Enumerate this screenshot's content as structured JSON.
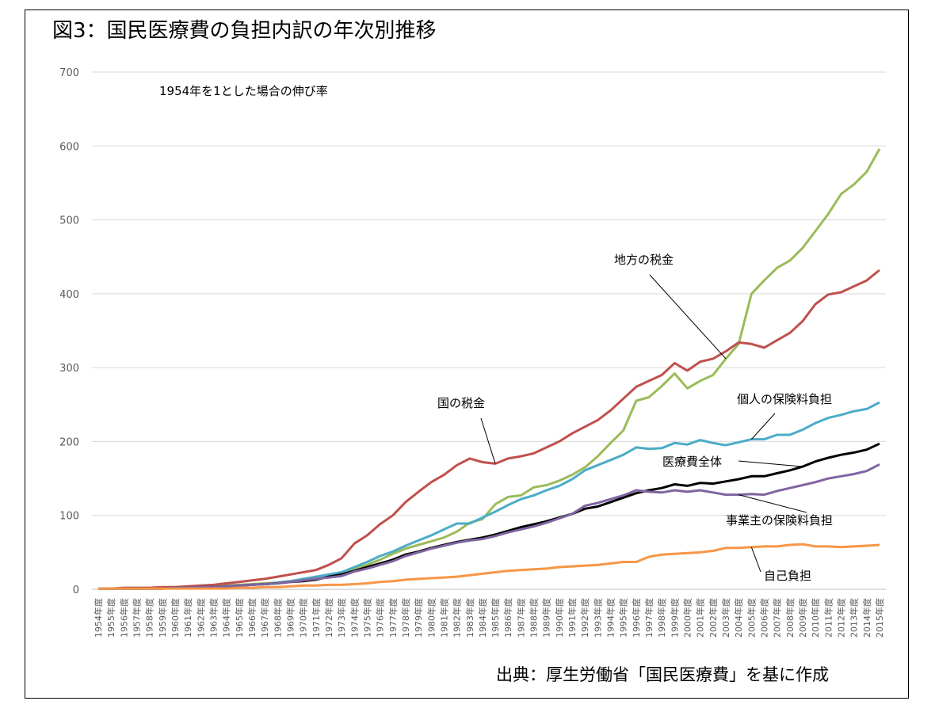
{
  "title": "図3：国民医療費の負担内訳の年次別推移",
  "source": "出典：厚生労働省「国民医療費」を基に作成",
  "chart_data": {
    "type": "line",
    "subtitle": "1954年を1とした場合の伸び率",
    "ylim": [
      0,
      700
    ],
    "yticks": [
      0,
      100,
      200,
      300,
      400,
      500,
      600,
      700
    ],
    "grid": true,
    "categories": [
      "1954年度",
      "1955年度",
      "1956年度",
      "1957年度",
      "1958年度",
      "1959年度",
      "1960年度",
      "1961年度",
      "1962年度",
      "1963年度",
      "1964年度",
      "1965年度",
      "1966年度",
      "1967年度",
      "1968年度",
      "1969年度",
      "1970年度",
      "1971年度",
      "1972年度",
      "1973年度",
      "1974年度",
      "1975年度",
      "1976年度",
      "1977年度",
      "1978年度",
      "1979年度",
      "1980年度",
      "1981年度",
      "1982年度",
      "1983年度",
      "1984年度",
      "1985年度",
      "1986年度",
      "1987年度",
      "1988年度",
      "1989年度",
      "1990年度",
      "1991年度",
      "1992年度",
      "1993年度",
      "1994年度",
      "1995年度",
      "1996年度",
      "1997年度",
      "1998年度",
      "1999年度",
      "2000年度",
      "2001年度",
      "2002年度",
      "2003年度",
      "2004年度",
      "2005年度",
      "2006年度",
      "2007年度",
      "2008年度",
      "2009年度",
      "2010年度",
      "2011年度",
      "2012年度",
      "2013年度",
      "2014年度",
      "2015年度"
    ],
    "series": [
      {
        "name": "地方の税金",
        "color": "#9bbb59",
        "values": [
          1,
          1,
          1,
          1,
          1,
          1,
          2,
          2,
          3,
          4,
          5,
          6,
          7,
          8,
          9,
          11,
          13,
          15,
          18,
          22,
          27,
          33,
          40,
          48,
          55,
          60,
          65,
          70,
          78,
          90,
          95,
          115,
          125,
          127,
          138,
          141,
          147,
          155,
          165,
          180,
          198,
          215,
          255,
          260,
          275,
          292,
          272,
          282,
          290,
          312,
          332,
          400,
          418,
          435,
          445,
          462,
          485,
          508,
          535,
          548,
          565,
          596
        ]
      },
      {
        "name": "国の税金",
        "color": "#c0504d",
        "values": [
          1,
          1,
          2,
          2,
          2,
          3,
          3,
          4,
          5,
          6,
          8,
          10,
          12,
          14,
          17,
          20,
          23,
          26,
          33,
          42,
          62,
          73,
          88,
          100,
          118,
          132,
          145,
          155,
          168,
          177,
          172,
          170,
          177,
          180,
          184,
          192,
          200,
          211,
          220,
          229,
          242,
          258,
          274,
          282,
          290,
          306,
          296,
          308,
          312,
          322,
          334,
          332,
          327,
          337,
          347,
          363,
          386,
          399,
          402,
          410,
          418,
          432
        ]
      },
      {
        "name": "個人の保険料負担",
        "color": "#4bacc6",
        "values": [
          1,
          1,
          1,
          1,
          1,
          1,
          2,
          2,
          3,
          3,
          4,
          5,
          6,
          7,
          9,
          11,
          14,
          17,
          20,
          23,
          30,
          37,
          45,
          51,
          59,
          66,
          73,
          81,
          89,
          89,
          97,
          105,
          114,
          122,
          127,
          134,
          140,
          149,
          161,
          168,
          175,
          182,
          192,
          190,
          191,
          198,
          196,
          202,
          198,
          195,
          199,
          203,
          203,
          209,
          209,
          216,
          225,
          232,
          236,
          241,
          244,
          253
        ]
      },
      {
        "name": "医療費全体",
        "color": "#000000",
        "values": [
          1,
          1,
          1,
          1,
          1,
          1,
          2,
          2,
          3,
          3,
          4,
          5,
          6,
          7,
          8,
          10,
          11,
          13,
          17,
          20,
          25,
          30,
          35,
          40,
          47,
          51,
          56,
          60,
          64,
          67,
          70,
          74,
          79,
          84,
          88,
          92,
          97,
          102,
          109,
          112,
          118,
          124,
          130,
          134,
          137,
          142,
          140,
          144,
          143,
          146,
          149,
          153,
          153,
          157,
          161,
          166,
          173,
          178,
          182,
          185,
          189,
          197
        ]
      },
      {
        "name": "事業主の保険料負担",
        "color": "#8064a2",
        "values": [
          1,
          1,
          1,
          1,
          1,
          1,
          2,
          2,
          3,
          3,
          4,
          5,
          6,
          7,
          8,
          10,
          12,
          14,
          16,
          18,
          24,
          28,
          33,
          38,
          45,
          50,
          55,
          59,
          63,
          66,
          68,
          72,
          77,
          81,
          85,
          90,
          96,
          102,
          113,
          117,
          122,
          127,
          134,
          132,
          131,
          134,
          132,
          134,
          131,
          128,
          128,
          129,
          128,
          133,
          137,
          141,
          145,
          150,
          153,
          156,
          160,
          169
        ]
      },
      {
        "name": "自己負担",
        "color": "#f79646",
        "values": [
          1,
          1,
          1,
          1,
          1,
          1,
          1,
          1,
          1,
          1,
          1,
          2,
          2,
          3,
          3,
          4,
          5,
          5,
          6,
          6,
          7,
          8,
          10,
          11,
          13,
          14,
          15,
          16,
          17,
          19,
          21,
          23,
          25,
          26,
          27,
          28,
          30,
          31,
          32,
          33,
          35,
          37,
          37,
          44,
          47,
          48,
          49,
          50,
          52,
          56,
          56,
          57,
          58,
          58,
          60,
          61,
          58,
          58,
          57,
          58,
          59,
          60
        ]
      }
    ],
    "labels": [
      {
        "text": "地方の税金",
        "series": "地方の税金"
      },
      {
        "text": "国の税金",
        "series": "国の税金"
      },
      {
        "text": "個人の保険料負担",
        "series": "個人の保険料負担"
      },
      {
        "text": "医療費全体",
        "series": "医療費全体"
      },
      {
        "text": "事業主の保険料負担",
        "series": "事業主の保険料負担"
      },
      {
        "text": "自己負担",
        "series": "自己負担"
      }
    ]
  }
}
